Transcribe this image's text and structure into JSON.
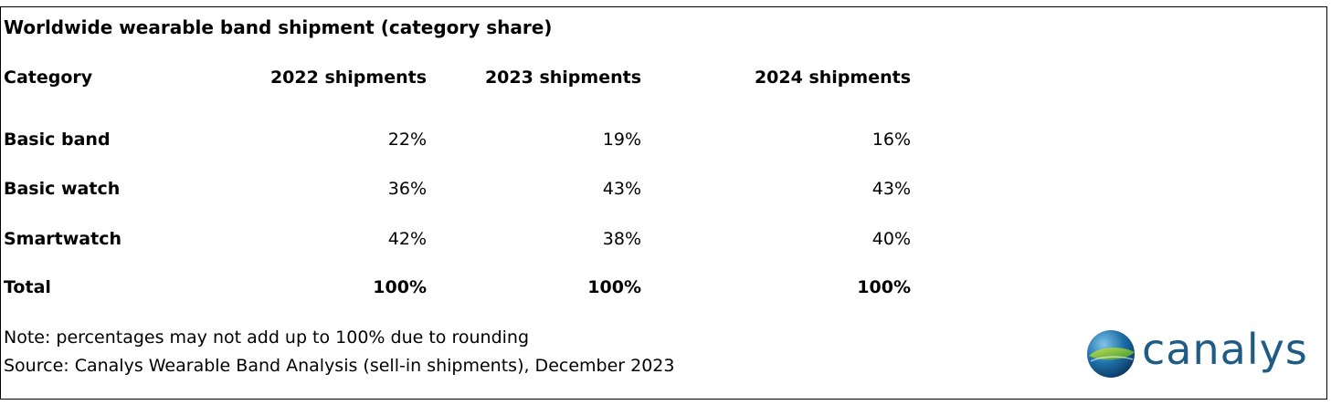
{
  "chart_data": {
    "type": "table",
    "title": "Worldwide wearable band shipment (category share)",
    "columns": [
      "Category",
      "2022 shipments",
      "2023 shipments",
      "2024 shipments"
    ],
    "rows": [
      {
        "category": "Basic band",
        "values": [
          "22%",
          "19%",
          "16%"
        ]
      },
      {
        "category": "Basic watch",
        "values": [
          "36%",
          "43%",
          "43%"
        ]
      },
      {
        "category": "Smartwatch",
        "values": [
          "42%",
          "38%",
          "40%"
        ]
      }
    ],
    "total": {
      "category": "Total",
      "values": [
        "100%",
        "100%",
        "100%"
      ]
    },
    "notes": [
      "Note: percentages may not add up to 100% due to rounding",
      "Source: Canalys Wearable Band Analysis (sell-in shipments), December 2023"
    ]
  },
  "logo": {
    "text": "canalys",
    "icon": "globe-icon",
    "color": "#1f5c85"
  }
}
